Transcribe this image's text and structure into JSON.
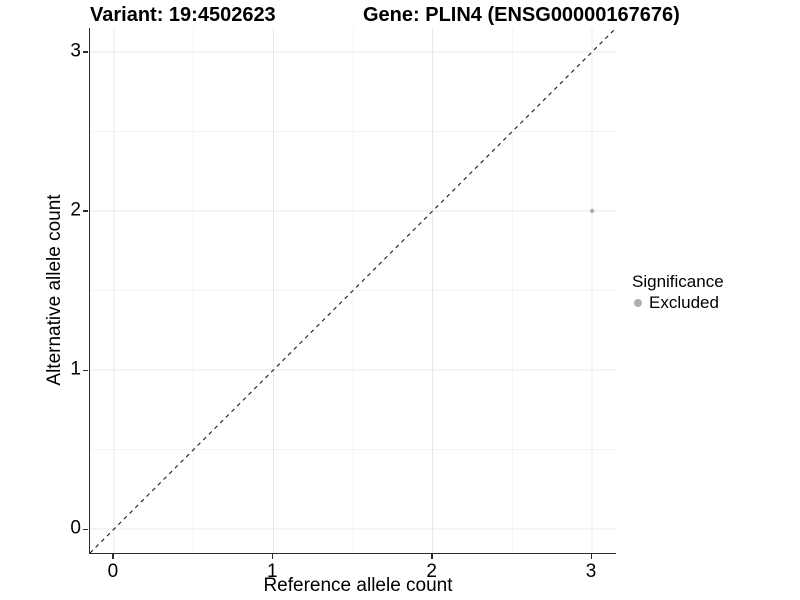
{
  "titles": {
    "variant": "Variant: 19:4502623",
    "gene": "Gene: PLIN4 (ENSG00000167676)"
  },
  "axes": {
    "x_label": "Reference allele count",
    "y_label": "Alternative allele count",
    "x_ticks": [
      "0",
      "1",
      "2",
      "3"
    ],
    "y_ticks": [
      "0",
      "1",
      "2",
      "3"
    ]
  },
  "legend": {
    "title": "Significance",
    "items": [
      {
        "label": "Excluded",
        "color": "#b0b0b0"
      }
    ]
  },
  "colors": {
    "point_gray": "#b0b0b0",
    "grid_major": "#e8e8e8",
    "grid_minor": "#f4f4f4",
    "axis_line": "#2b2b2b",
    "reference_line": "#1a1a1a"
  },
  "chart_data": {
    "type": "scatter",
    "title": "Variant: 19:4502623   Gene: PLIN4 (ENSG00000167676)",
    "xlabel": "Reference allele count",
    "ylabel": "Alternative allele count",
    "xlim": [
      -0.15,
      3.15
    ],
    "ylim": [
      -0.15,
      3.15
    ],
    "x_ticks": [
      0,
      1,
      2,
      3
    ],
    "y_ticks": [
      0,
      1,
      2,
      3
    ],
    "grid": "major and minor gridlines, white background",
    "legend_position": "right",
    "reference_line": {
      "style": "dashed",
      "equation": "y = x",
      "from": [
        -0.15,
        -0.15
      ],
      "to": [
        3.15,
        3.15
      ]
    },
    "series": [
      {
        "name": "Excluded",
        "color": "#b0b0b0",
        "points": [
          {
            "x": 3,
            "y": 2
          }
        ]
      }
    ]
  }
}
